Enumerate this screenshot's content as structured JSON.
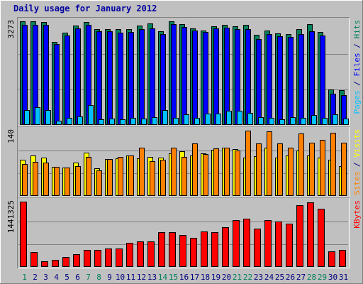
{
  "chart_data": {
    "type": "bar",
    "title": "Daily usage for January 2012",
    "days": [
      "1",
      "2",
      "3",
      "4",
      "5",
      "6",
      "7",
      "8",
      "9",
      "10",
      "11",
      "12",
      "13",
      "14",
      "15",
      "16",
      "17",
      "18",
      "19",
      "20",
      "21",
      "22",
      "23",
      "24",
      "25",
      "26",
      "27",
      "28",
      "29",
      "30",
      "31"
    ],
    "weekend_days": [
      "1",
      "7",
      "8",
      "14",
      "15",
      "21",
      "22",
      "28",
      "29"
    ],
    "colors": {
      "background": "#C0C0C0",
      "title": "#0000A0",
      "hits": "#00805C",
      "files": "#0000FF",
      "pages": "#00C0FF",
      "visits": "#FFFF00",
      "sites": "#FF8000",
      "kbytes": "#FF0000",
      "weekday_label": "#000080",
      "weekend_label": "#00805C"
    },
    "panels": [
      {
        "max_label": "3273",
        "max": 3273,
        "legend": [
          {
            "text": "Pages",
            "color": "#00C0FF"
          },
          {
            "text": " / ",
            "color": "#000080"
          },
          {
            "text": "Files",
            "color": "#0000FF"
          },
          {
            "text": " / ",
            "color": "#000080"
          },
          {
            "text": "Hits",
            "color": "#00805C"
          }
        ],
        "series": [
          {
            "name": "Hits",
            "color": "#00805C",
            "values": [
              3273,
              3273,
              3240,
              2620,
              2920,
              3140,
              3240,
              3020,
              3030,
              3020,
              3030,
              3130,
              3200,
              2950,
              3273,
              3180,
              3060,
              2990,
              3110,
              3160,
              3110,
              3160,
              2850,
              2990,
              2900,
              2880,
              3030,
              3180,
              2930,
              1120,
              1090
            ]
          },
          {
            "name": "Files",
            "color": "#0000FF",
            "values": [
              3170,
              3170,
              3160,
              2550,
              2820,
              3050,
              3170,
              2960,
              2960,
              2920,
              2940,
              3020,
              3060,
              2870,
              3190,
              3090,
              2990,
              2930,
              3040,
              3070,
              3030,
              3020,
              2710,
              2860,
              2810,
              2780,
              2860,
              2970,
              2820,
              990,
              950
            ]
          },
          {
            "name": "Pages",
            "color": "#00C0FF",
            "values": [
              460,
              550,
              480,
              140,
              230,
              270,
              620,
              190,
              210,
              190,
              230,
              200,
              250,
              460,
              220,
              340,
              220,
              350,
              350,
              440,
              450,
              380,
              240,
              220,
              190,
              250,
              230,
              320,
              220,
              340,
              200
            ]
          }
        ]
      },
      {
        "max_label": "140",
        "max": 140,
        "legend": [
          {
            "text": "Sites",
            "color": "#FF8000"
          },
          {
            "text": " / ",
            "color": "#000080"
          },
          {
            "text": "Visits",
            "color": "#FFFF00"
          }
        ],
        "series": [
          {
            "name": "Visits",
            "color": "#FFFF00",
            "values": [
              77,
              86,
              82,
              62,
              61,
              72,
              93,
              59,
              79,
              81,
              86,
              80,
              83,
              82,
              91,
              96,
              86,
              92,
              99,
              103,
              100,
              82,
              85,
              103,
              82,
              86,
              98,
              87,
              82,
              77,
              64
            ]
          },
          {
            "name": "Sites",
            "color": "#FF8000",
            "values": [
              69,
              73,
              71,
              62,
              61,
              64,
              83,
              55,
              79,
              83,
              87,
              103,
              75,
              78,
              103,
              83,
              112,
              90,
              102,
              104,
              97,
              140,
              112,
              138,
              112,
              104,
              134,
              114,
              120,
              135,
              114
            ]
          }
        ]
      },
      {
        "max_label": "1441325",
        "max": 1441325,
        "legend": [
          {
            "text": "KBytes",
            "color": "#FF0000"
          }
        ],
        "series": [
          {
            "name": "KBytes",
            "color": "#FF0000",
            "values": [
              1441325,
              330000,
              130000,
              150000,
              220000,
              280000,
              370000,
              380000,
              400000,
              410000,
              530000,
              570000,
              570000,
              770000,
              770000,
              700000,
              650000,
              790000,
              760000,
              880000,
              1040000,
              1070000,
              840000,
              1030000,
              1010000,
              960000,
              1360000,
              1420000,
              1290000,
              340000,
              370000
            ]
          }
        ]
      }
    ]
  }
}
